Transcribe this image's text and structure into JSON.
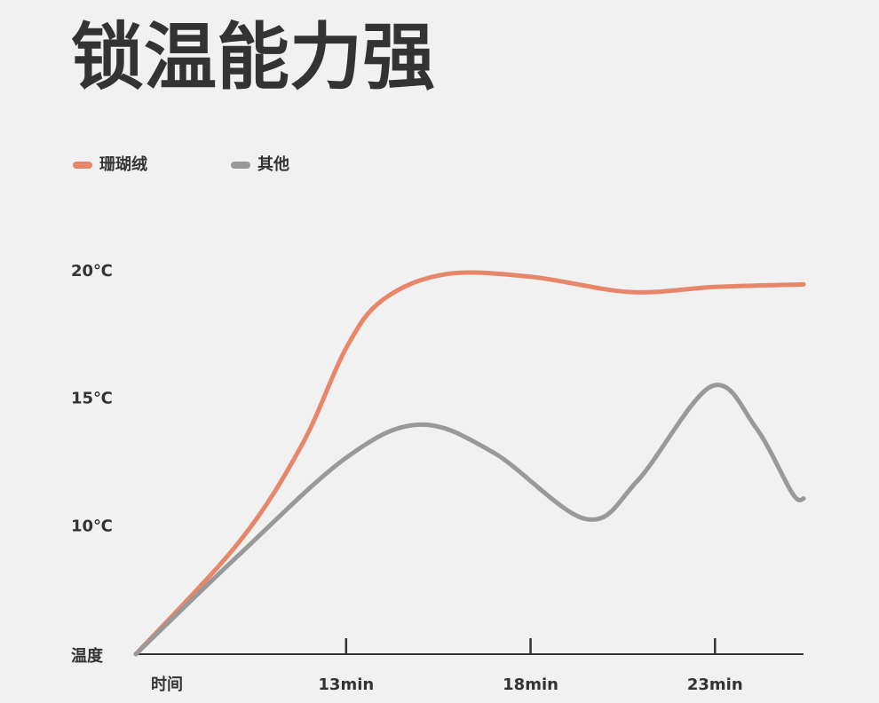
{
  "chart_data": {
    "type": "line",
    "title": "锁温能力强",
    "x_label": "时间",
    "y_label": "温度",
    "xlim": [
      7.3,
      25.4
    ],
    "ylim": [
      5,
      20
    ],
    "xticks": [
      {
        "value": 13,
        "label": "13min"
      },
      {
        "value": 18,
        "label": "18min"
      },
      {
        "value": 23,
        "label": "23min"
      }
    ],
    "yticks": [
      {
        "value": 10,
        "label": "10℃"
      },
      {
        "value": 15,
        "label": "15℃"
      },
      {
        "value": 20,
        "label": "20℃"
      }
    ],
    "series": [
      {
        "name": "珊瑚绒",
        "color": "#e8866a",
        "x": [
          7.3,
          10.1,
          11.8,
          13,
          14,
          15.7,
          18,
          20.7,
          23,
          25.4
        ],
        "values": [
          5,
          9.4,
          13.2,
          17.0,
          18.9,
          19.9,
          19.8,
          19.2,
          19.4,
          19.5
        ]
      },
      {
        "name": "其他",
        "color": "#999999",
        "x": [
          7.3,
          10.1,
          13,
          15.0,
          17.0,
          19.5,
          20.9,
          22.9,
          24.1,
          25.1,
          25.4
        ],
        "values": [
          5,
          8.9,
          12.7,
          14.0,
          12.9,
          10.3,
          11.8,
          15.5,
          13.9,
          11.3,
          11.1
        ]
      }
    ]
  }
}
